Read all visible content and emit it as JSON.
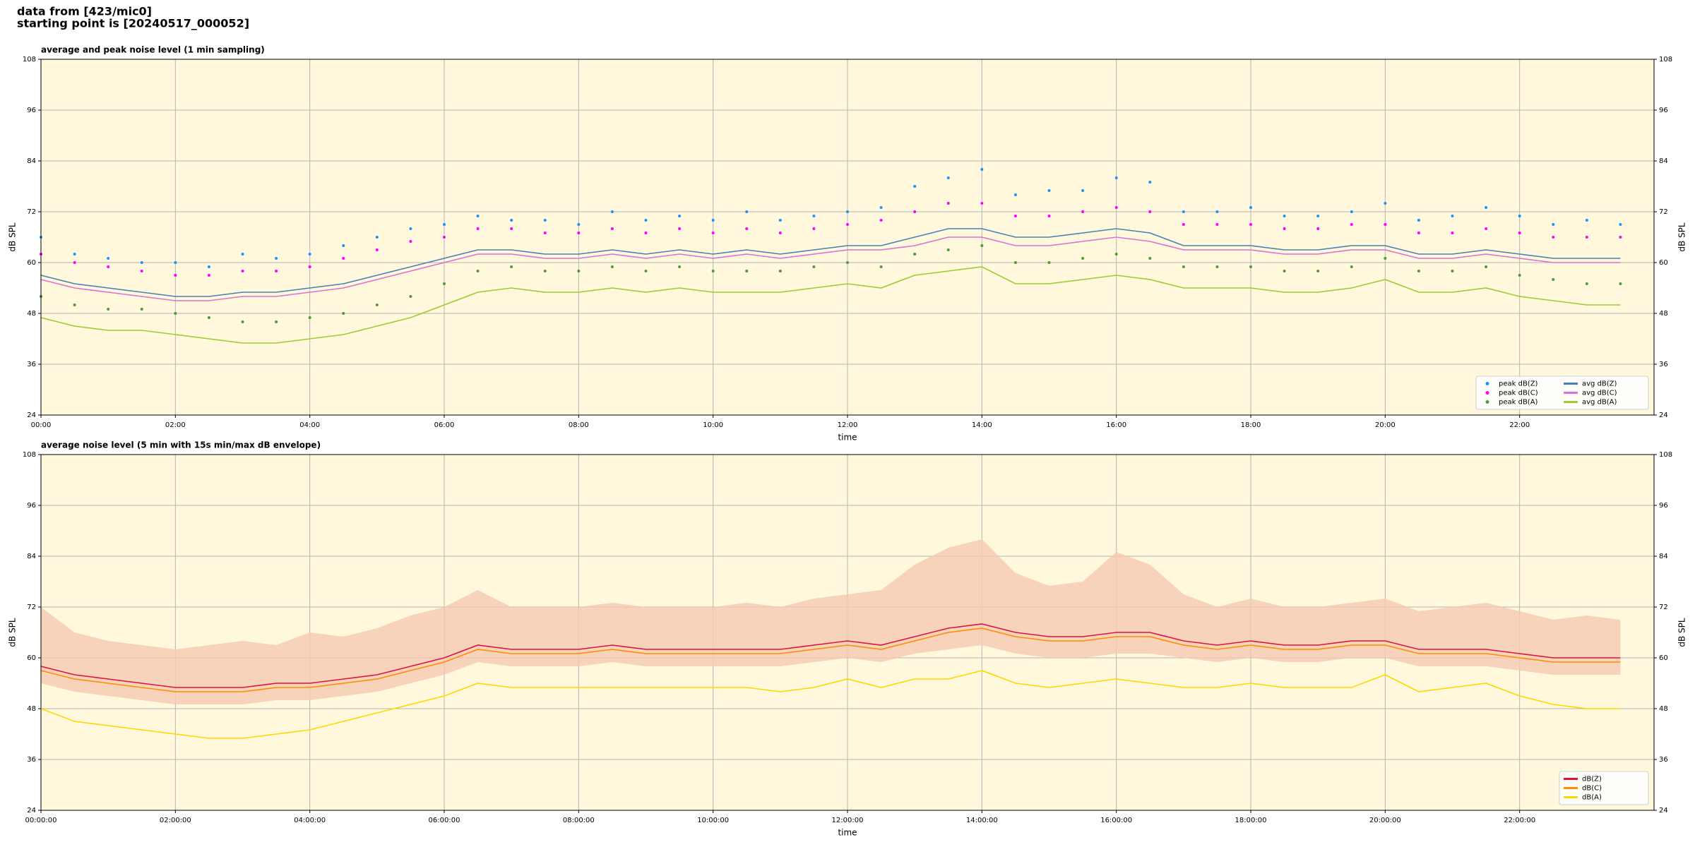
{
  "header": {
    "source": "data from [423/mic0]",
    "start": "starting point is [20240517_000052]"
  },
  "chart_data": [
    {
      "type": "line",
      "title": "average and peak noise level (1 min sampling)",
      "xlabel": "time",
      "ylabel": "dB SPL",
      "background": "#fff8dc",
      "grid": true,
      "legend": "lower right",
      "legend_columns": 2,
      "xlim": [
        0,
        24
      ],
      "ylim": [
        24,
        108
      ],
      "yticks": [
        24,
        36,
        48,
        60,
        72,
        84,
        96,
        108
      ],
      "xticks": [
        {
          "value": 0,
          "label": "00:00"
        },
        {
          "value": 2,
          "label": "02:00"
        },
        {
          "value": 4,
          "label": "04:00"
        },
        {
          "value": 6,
          "label": "06:00"
        },
        {
          "value": 8,
          "label": "08:00"
        },
        {
          "value": 10,
          "label": "10:00"
        },
        {
          "value": 12,
          "label": "12:00"
        },
        {
          "value": 14,
          "label": "14:00"
        },
        {
          "value": 16,
          "label": "16:00"
        },
        {
          "value": 18,
          "label": "18:00"
        },
        {
          "value": 20,
          "label": "20:00"
        },
        {
          "value": 22,
          "label": "22:00"
        }
      ],
      "x": [
        0,
        0.5,
        1,
        1.5,
        2,
        2.5,
        3,
        3.5,
        4,
        4.5,
        5,
        5.5,
        6,
        6.5,
        7,
        7.5,
        8,
        8.5,
        9,
        9.5,
        10,
        10.5,
        11,
        11.5,
        12,
        12.5,
        13,
        13.5,
        14,
        14.5,
        15,
        15.5,
        16,
        16.5,
        17,
        17.5,
        18,
        18.5,
        19,
        19.5,
        20,
        20.5,
        21,
        21.5,
        22,
        22.5,
        23,
        23.5
      ],
      "series": [
        {
          "name": "peak dB(Z)",
          "type": "scatter",
          "color": "#1e90ff",
          "values": [
            66,
            62,
            61,
            60,
            60,
            59,
            62,
            61,
            62,
            64,
            66,
            68,
            69,
            71,
            70,
            70,
            69,
            72,
            70,
            71,
            70,
            72,
            70,
            71,
            72,
            73,
            78,
            80,
            82,
            76,
            77,
            77,
            80,
            79,
            72,
            72,
            73,
            71,
            71,
            72,
            74,
            70,
            71,
            73,
            71,
            69,
            70,
            69
          ]
        },
        {
          "name": "peak dB(C)",
          "type": "scatter",
          "color": "#ff00ff",
          "values": [
            62,
            60,
            59,
            58,
            57,
            57,
            58,
            58,
            59,
            61,
            63,
            65,
            66,
            68,
            68,
            67,
            67,
            68,
            67,
            68,
            67,
            68,
            67,
            68,
            69,
            70,
            72,
            74,
            74,
            71,
            71,
            72,
            73,
            72,
            69,
            69,
            69,
            68,
            68,
            69,
            69,
            67,
            67,
            68,
            67,
            66,
            66,
            66
          ]
        },
        {
          "name": "peak dB(A)",
          "type": "scatter",
          "color": "#4f9a3a",
          "values": [
            52,
            50,
            49,
            49,
            48,
            47,
            46,
            46,
            47,
            48,
            50,
            52,
            55,
            58,
            59,
            58,
            58,
            59,
            58,
            59,
            58,
            58,
            58,
            59,
            60,
            59,
            62,
            63,
            64,
            60,
            60,
            61,
            62,
            61,
            59,
            59,
            59,
            58,
            58,
            59,
            61,
            58,
            58,
            59,
            57,
            56,
            55,
            55
          ]
        },
        {
          "name": "avg dB(Z)",
          "type": "line",
          "color": "#4682b4",
          "values": [
            57,
            55,
            54,
            53,
            52,
            52,
            53,
            53,
            54,
            55,
            57,
            59,
            61,
            63,
            63,
            62,
            62,
            63,
            62,
            63,
            62,
            63,
            62,
            63,
            64,
            64,
            66,
            68,
            68,
            66,
            66,
            67,
            68,
            67,
            64,
            64,
            64,
            63,
            63,
            64,
            64,
            62,
            62,
            63,
            62,
            61,
            61,
            61
          ]
        },
        {
          "name": "avg dB(C)",
          "type": "line",
          "color": "#da70d6",
          "values": [
            56,
            54,
            53,
            52,
            51,
            51,
            52,
            52,
            53,
            54,
            56,
            58,
            60,
            62,
            62,
            61,
            61,
            62,
            61,
            62,
            61,
            62,
            61,
            62,
            63,
            63,
            64,
            66,
            66,
            64,
            64,
            65,
            66,
            65,
            63,
            63,
            63,
            62,
            62,
            63,
            63,
            61,
            61,
            62,
            61,
            60,
            60,
            60
          ]
        },
        {
          "name": "avg dB(A)",
          "type": "line",
          "color": "#9acd32",
          "values": [
            47,
            45,
            44,
            44,
            43,
            42,
            41,
            41,
            42,
            43,
            45,
            47,
            50,
            53,
            54,
            53,
            53,
            54,
            53,
            54,
            53,
            53,
            53,
            54,
            55,
            54,
            57,
            58,
            59,
            55,
            55,
            56,
            57,
            56,
            54,
            54,
            54,
            53,
            53,
            54,
            56,
            53,
            53,
            54,
            52,
            51,
            50,
            50
          ]
        }
      ]
    },
    {
      "type": "line",
      "title": "average noise level (5 min with 15s min/max dB envelope)",
      "xlabel": "time",
      "ylabel": "dB SPL",
      "background": "#fff8dc",
      "grid": true,
      "legend": "lower right",
      "legend_columns": 1,
      "xlim": [
        0,
        24
      ],
      "ylim": [
        24,
        108
      ],
      "yticks": [
        24,
        36,
        48,
        60,
        72,
        84,
        96,
        108
      ],
      "xticks": [
        {
          "value": 0,
          "label": "00:00:00"
        },
        {
          "value": 2,
          "label": "02:00:00"
        },
        {
          "value": 4,
          "label": "04:00:00"
        },
        {
          "value": 6,
          "label": "06:00:00"
        },
        {
          "value": 8,
          "label": "08:00:00"
        },
        {
          "value": 10,
          "label": "10:00:00"
        },
        {
          "value": 12,
          "label": "12:00:00"
        },
        {
          "value": 14,
          "label": "14:00:00"
        },
        {
          "value": 16,
          "label": "16:00:00"
        },
        {
          "value": 18,
          "label": "18:00:00"
        },
        {
          "value": 20,
          "label": "20:00:00"
        },
        {
          "value": 22,
          "label": "22:00:00"
        }
      ],
      "x": [
        0,
        0.5,
        1,
        1.5,
        2,
        2.5,
        3,
        3.5,
        4,
        4.5,
        5,
        5.5,
        6,
        6.5,
        7,
        7.5,
        8,
        8.5,
        9,
        9.5,
        10,
        10.5,
        11,
        11.5,
        12,
        12.5,
        13,
        13.5,
        14,
        14.5,
        15,
        15.5,
        16,
        16.5,
        17,
        17.5,
        18,
        18.5,
        19,
        19.5,
        20,
        20.5,
        21,
        21.5,
        22,
        22.5,
        23,
        23.5
      ],
      "envelope": {
        "color": "#f6c9b3",
        "low": [
          54,
          52,
          51,
          50,
          49,
          49,
          49,
          50,
          50,
          51,
          52,
          54,
          56,
          59,
          58,
          58,
          58,
          59,
          58,
          58,
          58,
          58,
          58,
          59,
          60,
          59,
          61,
          62,
          63,
          61,
          60,
          60,
          61,
          61,
          60,
          59,
          60,
          59,
          59,
          60,
          60,
          58,
          58,
          58,
          57,
          56,
          56,
          56
        ],
        "high": [
          72,
          66,
          64,
          63,
          62,
          63,
          64,
          63,
          66,
          65,
          67,
          70,
          72,
          76,
          72,
          72,
          72,
          73,
          72,
          72,
          72,
          73,
          72,
          74,
          75,
          76,
          82,
          86,
          88,
          80,
          77,
          78,
          85,
          82,
          75,
          72,
          74,
          72,
          72,
          73,
          74,
          71,
          72,
          73,
          71,
          69,
          70,
          69
        ]
      },
      "series": [
        {
          "name": "dB(Z)",
          "type": "line",
          "color": "#dc143c",
          "values": [
            58,
            56,
            55,
            54,
            53,
            53,
            53,
            54,
            54,
            55,
            56,
            58,
            60,
            63,
            62,
            62,
            62,
            63,
            62,
            62,
            62,
            62,
            62,
            63,
            64,
            63,
            65,
            67,
            68,
            66,
            65,
            65,
            66,
            66,
            64,
            63,
            64,
            63,
            63,
            64,
            64,
            62,
            62,
            62,
            61,
            60,
            60,
            60
          ]
        },
        {
          "name": "dB(C)",
          "type": "line",
          "color": "#ff8c00",
          "values": [
            57,
            55,
            54,
            53,
            52,
            52,
            52,
            53,
            53,
            54,
            55,
            57,
            59,
            62,
            61,
            61,
            61,
            62,
            61,
            61,
            61,
            61,
            61,
            62,
            63,
            62,
            64,
            66,
            67,
            65,
            64,
            64,
            65,
            65,
            63,
            62,
            63,
            62,
            62,
            63,
            63,
            61,
            61,
            61,
            60,
            59,
            59,
            59
          ]
        },
        {
          "name": "dB(A)",
          "type": "line",
          "color": "#ffd700",
          "values": [
            48,
            45,
            44,
            43,
            42,
            41,
            41,
            42,
            43,
            45,
            47,
            49,
            51,
            54,
            53,
            53,
            53,
            53,
            53,
            53,
            53,
            53,
            52,
            53,
            55,
            53,
            55,
            55,
            57,
            54,
            53,
            54,
            55,
            54,
            53,
            53,
            54,
            53,
            53,
            53,
            56,
            52,
            53,
            54,
            51,
            49,
            48,
            48
          ]
        }
      ]
    }
  ]
}
